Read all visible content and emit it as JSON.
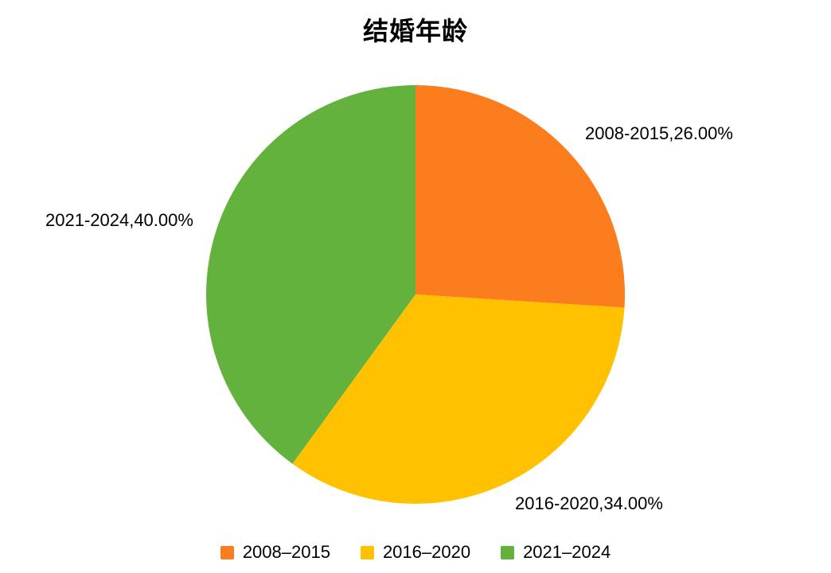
{
  "title": "结婚年龄",
  "chart_data": {
    "type": "pie",
    "title": "结婚年龄",
    "start_angle_deg": -90,
    "direction": "clockwise",
    "background": "#FFFFFF",
    "text_color": "#000000",
    "legend_position": "bottom",
    "slices": [
      {
        "name": "2008-2015",
        "value": 26.0,
        "color": "#FB7D1D",
        "label": "2008-2015,26.00%"
      },
      {
        "name": "2016-2020",
        "value": 34.0,
        "color": "#FFC100",
        "label": "2016-2020,34.00%"
      },
      {
        "name": "2021-2024",
        "value": 40.0,
        "color": "#63B23D",
        "label": "2021-2024,40.00%"
      }
    ],
    "legend": [
      {
        "label": "2008–2015",
        "color": "#FB7D1D"
      },
      {
        "label": "2016–2020",
        "color": "#FFC100"
      },
      {
        "label": "2021–2024",
        "color": "#63B23D"
      }
    ]
  }
}
